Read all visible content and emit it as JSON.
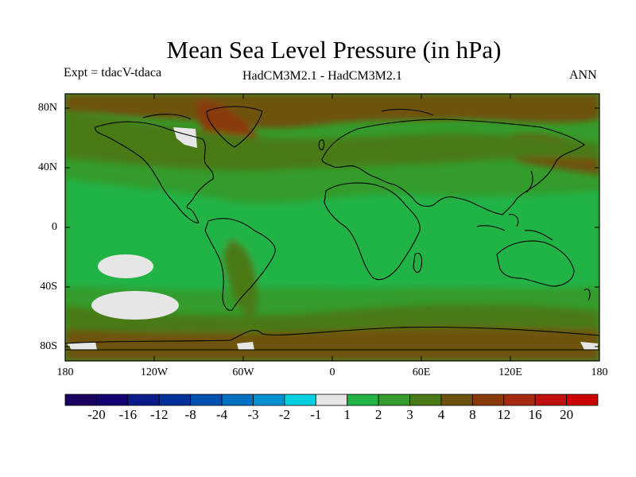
{
  "title": "Mean Sea Level Pressure (in hPa)",
  "left_label": "Expt = tdacV-tdaca",
  "center_label": "HadCM3M2.1 - HadCM3M2.1",
  "right_label": "ANN",
  "lat_labels": [
    "80N",
    "40N",
    "0",
    "40S",
    "80S"
  ],
  "lon_labels": [
    "180",
    "120W",
    "60W",
    "0",
    "60E",
    "120E",
    "180"
  ],
  "colorbar": {
    "labels": [
      "-20",
      "-16",
      "-12",
      "-8",
      "-4",
      "-3",
      "-2",
      "-1",
      "1",
      "2",
      "3",
      "4",
      "8",
      "12",
      "16",
      "20"
    ],
    "colors": [
      "#1a0060",
      "#120070",
      "#0a1a8a",
      "#00309a",
      "#0050b0",
      "#0070c0",
      "#0090d0",
      "#00d0e0",
      "#e6e6e6",
      "#21b346",
      "#349c2c",
      "#4a7a18",
      "#6e5210",
      "#8a3a08",
      "#a52a10",
      "#c01010",
      "#cc0000"
    ]
  },
  "map_colors": {
    "ocean_green": "#21b346",
    "mid_green": "#349c2c",
    "olive": "#4a7a18",
    "brown": "#6e5210",
    "rust": "#8a3a08",
    "grey": "#e6e6e6"
  }
}
